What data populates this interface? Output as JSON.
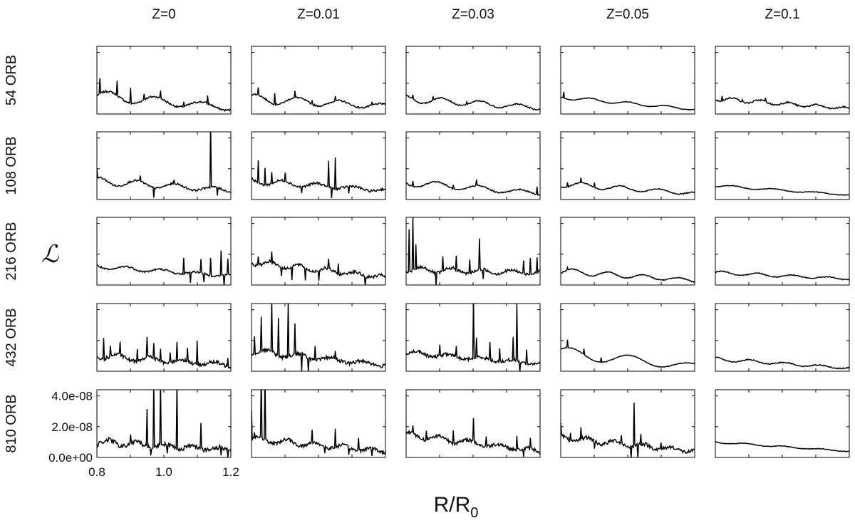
{
  "chart_data": {
    "type": "line",
    "layout": "small-multiples grid, 5 rows x 5 columns",
    "column_titles": [
      "Z=0",
      "Z=0.01",
      "Z=0.03",
      "Z=0.05",
      "Z=0.1"
    ],
    "row_titles": [
      "54 ORB",
      "108 ORB",
      "216 ORB",
      "432 ORB",
      "810 ORB"
    ],
    "ylabel": "ℒ",
    "xlabel_main": "R/R",
    "xlabel_sub": "0",
    "xlim": [
      0.8,
      1.2
    ],
    "ylim": [
      0,
      4.4e-08
    ],
    "x_ticks": [
      0.8,
      1.0,
      1.2
    ],
    "x_tick_labels": [
      "0.8",
      "1.0",
      "1.2"
    ],
    "y_ticks": [
      0,
      2e-08,
      4e-08
    ],
    "y_tick_labels": [
      "0.0e+00",
      "2.0e-08",
      "4.0e-08"
    ],
    "grid": false,
    "line_color": "#000000",
    "panels": [
      [
        {
          "base_start": 1.2e-08,
          "base_end": 4e-09,
          "wiggle": 0.35,
          "freq": 18,
          "noise": 0.06,
          "spikes": [
            [
              0.81,
              1e-08
            ],
            [
              0.86,
              9e-09
            ],
            [
              0.9,
              1e-08
            ],
            [
              0.94,
              4e-09
            ],
            [
              0.99,
              5e-09
            ],
            [
              1.06,
              3e-09
            ],
            [
              1.13,
              5e-09
            ]
          ]
        },
        {
          "base_start": 1e-08,
          "base_end": 5e-09,
          "wiggle": 0.3,
          "freq": 20,
          "noise": 0.05,
          "spikes": [
            [
              0.82,
              5e-09
            ],
            [
              0.87,
              7e-09
            ],
            [
              0.93,
              4e-09
            ],
            [
              0.98,
              3e-09
            ],
            [
              1.05,
              3e-09
            ],
            [
              1.16,
              2e-09
            ]
          ]
        },
        {
          "base_start": 1e-08,
          "base_end": 4e-09,
          "wiggle": 0.25,
          "freq": 22,
          "noise": 0.04,
          "spikes": [
            [
              0.82,
              3e-09
            ],
            [
              0.88,
              2e-09
            ],
            [
              0.98,
              2e-09
            ]
          ]
        },
        {
          "base_start": 1.1e-08,
          "base_end": 3e-09,
          "wiggle": 0.12,
          "freq": 22,
          "noise": 0.02,
          "spikes": [
            [
              0.81,
              4e-09
            ]
          ]
        },
        {
          "base_start": 1e-08,
          "base_end": 3.5e-09,
          "wiggle": 0.15,
          "freq": 30,
          "noise": 0.05,
          "spikes": [
            [
              0.82,
              3e-09
            ],
            [
              0.88,
              2e-09
            ],
            [
              0.95,
              2e-09
            ]
          ]
        }
      ],
      [
        {
          "base_start": 1.2e-08,
          "base_end": 6e-09,
          "wiggle": 0.25,
          "freq": 22,
          "noise": 0.06,
          "spikes": [
            [
              0.8,
              6e-09
            ],
            [
              0.93,
              4e-09
            ],
            [
              0.97,
              -6e-09
            ],
            [
              1.03,
              3e-09
            ],
            [
              1.14,
              4.2e-08
            ],
            [
              1.16,
              -5e-09
            ]
          ]
        },
        {
          "base_start": 1.2e-08,
          "base_end": 6e-09,
          "wiggle": 0.2,
          "freq": 24,
          "noise": 0.08,
          "spikes": [
            [
              0.82,
              1.4e-08
            ],
            [
              0.84,
              1.1e-08
            ],
            [
              0.86,
              7e-09
            ],
            [
              0.9,
              6e-09
            ],
            [
              0.95,
              -4e-09
            ],
            [
              1.03,
              1.8e-08
            ],
            [
              1.05,
              2e-08
            ],
            [
              1.04,
              -6e-09
            ],
            [
              1.09,
              -5e-09
            ]
          ]
        },
        {
          "base_start": 1.1e-08,
          "base_end": 4e-09,
          "wiggle": 0.25,
          "freq": 20,
          "noise": 0.04,
          "spikes": [
            [
              0.82,
              4e-09
            ],
            [
              0.94,
              3e-09
            ],
            [
              1.01,
              4e-09
            ],
            [
              1.19,
              5e-09
            ]
          ]
        },
        {
          "base_start": 1e-08,
          "base_end": 4e-09,
          "wiggle": 0.2,
          "freq": 22,
          "noise": 0.03,
          "spikes": [
            [
              0.82,
              3e-09
            ],
            [
              0.86,
              3e-09
            ],
            [
              0.9,
              3e-09
            ]
          ]
        },
        {
          "base_start": 9e-09,
          "base_end": 3e-09,
          "wiggle": 0.08,
          "freq": 20,
          "noise": 0.02,
          "spikes": []
        }
      ],
      [
        {
          "base_start": 1.2e-08,
          "base_end": 6e-09,
          "wiggle": 0.15,
          "freq": 24,
          "noise": 0.06,
          "spikes": [
            [
              1.06,
              1e-08
            ],
            [
              1.08,
              -7e-09
            ],
            [
              1.11,
              9e-09
            ],
            [
              1.12,
              -6e-09
            ],
            [
              1.14,
              1.2e-08
            ],
            [
              1.17,
              1.6e-08
            ],
            [
              1.18,
              -7e-09
            ],
            [
              1.19,
              1e-08
            ]
          ]
        },
        {
          "base_start": 1.5e-08,
          "base_end": 5e-09,
          "wiggle": 0.2,
          "freq": 30,
          "noise": 0.1,
          "spikes": [
            [
              0.82,
              6e-09
            ],
            [
              0.86,
              6e-09
            ],
            [
              0.89,
              -5e-09
            ],
            [
              0.92,
              -9e-09
            ],
            [
              0.96,
              -8e-09
            ],
            [
              1.0,
              -7e-09
            ],
            [
              1.03,
              6e-09
            ],
            [
              1.06,
              6e-09
            ],
            [
              1.14,
              -7e-09
            ]
          ]
        },
        {
          "base_start": 1e-08,
          "base_end": 8e-09,
          "wiggle": 0.2,
          "freq": 28,
          "noise": 0.1,
          "spikes": [
            [
              0.81,
              2.8e-08
            ],
            [
              0.82,
              3.4e-08
            ],
            [
              0.83,
              1.6e-08
            ],
            [
              0.89,
              -8e-09
            ],
            [
              0.91,
              9e-09
            ],
            [
              0.95,
              8e-09
            ],
            [
              0.99,
              9e-09
            ],
            [
              1.02,
              2e-08
            ],
            [
              1.03,
              -7e-09
            ],
            [
              1.15,
              8e-09
            ],
            [
              1.17,
              1e-08
            ],
            [
              1.19,
              9e-09
            ]
          ]
        },
        {
          "base_start": 9e-09,
          "base_end": 3e-09,
          "wiggle": 0.2,
          "freq": 24,
          "noise": 0.03,
          "spikes": [
            [
              0.82,
              2e-09
            ]
          ]
        },
        {
          "base_start": 8e-09,
          "base_end": 4e-09,
          "wiggle": 0.12,
          "freq": 24,
          "noise": 0.03,
          "spikes": []
        }
      ],
      [
        {
          "base_start": 1e-08,
          "base_end": 4e-09,
          "wiggle": 0.2,
          "freq": 26,
          "noise": 0.12,
          "spikes": [
            [
              0.82,
              1.4e-08
            ],
            [
              0.84,
              6e-09
            ],
            [
              0.87,
              8e-09
            ],
            [
              0.92,
              7e-09
            ],
            [
              0.95,
              1.3e-08
            ],
            [
              0.97,
              1e-08
            ],
            [
              0.99,
              9e-09
            ],
            [
              1.02,
              6e-09
            ],
            [
              1.04,
              1.2e-08
            ],
            [
              1.07,
              9e-09
            ],
            [
              1.1,
              1.5e-08
            ],
            [
              1.19,
              6e-09
            ]
          ]
        },
        {
          "base_start": 1.3e-08,
          "base_end": 4e-09,
          "wiggle": 0.2,
          "freq": 26,
          "noise": 0.12,
          "spikes": [
            [
              0.81,
              1.2e-08
            ],
            [
              0.83,
              2.2e-08
            ],
            [
              0.86,
              3.4e-08
            ],
            [
              0.88,
              2.4e-08
            ],
            [
              0.91,
              3.6e-08
            ],
            [
              0.93,
              2e-08
            ],
            [
              0.95,
              -1.1e-08
            ],
            [
              0.97,
              -1.2e-08
            ],
            [
              0.99,
              8e-09
            ],
            [
              1.05,
              5e-09
            ]
          ]
        },
        {
          "base_start": 1.2e-08,
          "base_end": 5e-09,
          "wiggle": 0.15,
          "freq": 26,
          "noise": 0.1,
          "spikes": [
            [
              0.9,
              7e-09
            ],
            [
              0.95,
              6e-09
            ],
            [
              1.0,
              3.7e-08
            ],
            [
              1.01,
              1.2e-08
            ],
            [
              1.05,
              1.1e-08
            ],
            [
              1.08,
              9e-09
            ],
            [
              1.12,
              1.5e-08
            ],
            [
              1.13,
              3.7e-08
            ],
            [
              1.14,
              -9e-09
            ],
            [
              1.16,
              1e-08
            ]
          ]
        },
        {
          "base_start": 1.2e-08,
          "base_end": 3e-09,
          "wiggle": 0.4,
          "freq": 14,
          "noise": 0.02,
          "spikes": [
            [
              0.82,
              5e-09
            ],
            [
              0.87,
              4e-09
            ],
            [
              0.92,
              3e-09
            ]
          ]
        },
        {
          "base_start": 8e-09,
          "base_end": 2e-09,
          "wiggle": 0.12,
          "freq": 24,
          "noise": 0.03,
          "spikes": []
        }
      ],
      [
        {
          "base_start": 1e-08,
          "base_end": 5e-09,
          "wiggle": 0.2,
          "freq": 30,
          "noise": 0.15,
          "spikes": [
            [
              0.9,
              6e-09
            ],
            [
              0.95,
              2.5e-08
            ],
            [
              0.96,
              -6e-09
            ],
            [
              0.97,
              4.2e-08
            ],
            [
              0.99,
              4.2e-08
            ],
            [
              1.01,
              -5e-09
            ],
            [
              1.04,
              4.2e-08
            ],
            [
              1.11,
              1.8e-08
            ],
            [
              1.17,
              -4e-09
            ],
            [
              1.19,
              -5e-09
            ]
          ]
        },
        {
          "base_start": 1.2e-08,
          "base_end": 4e-09,
          "wiggle": 0.2,
          "freq": 30,
          "noise": 0.12,
          "spikes": [
            [
              0.8,
              2e-08
            ],
            [
              0.81,
              3e-09
            ],
            [
              0.83,
              4.2e-08
            ],
            [
              0.84,
              4.2e-08
            ],
            [
              0.98,
              9e-09
            ],
            [
              1.02,
              -4e-09
            ],
            [
              1.05,
              1.1e-08
            ],
            [
              1.09,
              -4e-09
            ],
            [
              1.12,
              8e-09
            ],
            [
              1.16,
              -4e-09
            ]
          ]
        },
        {
          "base_start": 1.5e-08,
          "base_end": 4e-09,
          "wiggle": 0.2,
          "freq": 28,
          "noise": 0.12,
          "spikes": [
            [
              0.82,
              5e-09
            ],
            [
              0.86,
              5e-09
            ],
            [
              0.94,
              9e-09
            ],
            [
              1.0,
              1.6e-08
            ],
            [
              1.04,
              7e-09
            ],
            [
              1.13,
              9e-09
            ],
            [
              1.15,
              -6e-09
            ],
            [
              1.17,
              6e-09
            ]
          ]
        },
        {
          "base_start": 1.3e-08,
          "base_end": 4e-09,
          "wiggle": 0.2,
          "freq": 30,
          "noise": 0.12,
          "spikes": [
            [
              0.8,
              7e-09
            ],
            [
              0.83,
              6e-09
            ],
            [
              0.86,
              8e-09
            ],
            [
              0.9,
              -5e-09
            ],
            [
              0.98,
              6e-09
            ],
            [
              1.01,
              -9e-09
            ],
            [
              1.02,
              2.8e-08
            ],
            [
              1.03,
              -9e-09
            ],
            [
              1.04,
              7e-09
            ],
            [
              1.1,
              4e-09
            ]
          ]
        },
        {
          "base_start": 1e-08,
          "base_end": 4e-09,
          "wiggle": 0.06,
          "freq": 22,
          "noise": 0.02,
          "spikes": []
        }
      ]
    ]
  }
}
